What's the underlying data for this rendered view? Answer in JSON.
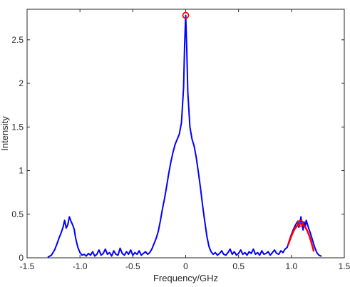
{
  "chart_data": {
    "type": "line",
    "title": "",
    "xlabel": "Frequency/GHz",
    "ylabel": "Intensity",
    "xlim": [
      -1.5,
      1.5
    ],
    "ylim": [
      0,
      2.85
    ],
    "xticks": [
      -1.5,
      -1,
      -0.5,
      0,
      0.5,
      1,
      1.5
    ],
    "xtick_labels": [
      "-1.5",
      "-1.0",
      "-0.5",
      "0",
      "0.5",
      "1.0",
      "1.5"
    ],
    "yticks": [
      0,
      0.5,
      1,
      1.5,
      2,
      2.5
    ],
    "ytick_labels": [
      "0",
      "0.5",
      "1",
      "1.5",
      "2",
      "2.5"
    ],
    "grid": false,
    "box": true,
    "series": [
      {
        "color": "#0000ff",
        "style": "solid",
        "x": [
          -1.3,
          -1.27,
          -1.24,
          -1.22,
          -1.2,
          -1.18,
          -1.16,
          -1.145,
          -1.13,
          -1.115,
          -1.1,
          -1.085,
          -1.07,
          -1.055,
          -1.04,
          -1.02,
          -1.0,
          -0.98,
          -0.96,
          -0.94,
          -0.92,
          -0.9,
          -0.88,
          -0.86,
          -0.84,
          -0.82,
          -0.8,
          -0.78,
          -0.76,
          -0.74,
          -0.72,
          -0.7,
          -0.68,
          -0.66,
          -0.64,
          -0.62,
          -0.6,
          -0.58,
          -0.56,
          -0.54,
          -0.52,
          -0.5,
          -0.48,
          -0.46,
          -0.44,
          -0.42,
          -0.4,
          -0.38,
          -0.36,
          -0.34,
          -0.32,
          -0.3,
          -0.28,
          -0.26,
          -0.24,
          -0.22,
          -0.2,
          -0.18,
          -0.16,
          -0.14,
          -0.12,
          -0.1,
          -0.08,
          -0.06,
          -0.04,
          -0.02,
          -0.01,
          0.0,
          0.01,
          0.02,
          0.04,
          0.06,
          0.08,
          0.1,
          0.12,
          0.14,
          0.16,
          0.18,
          0.2,
          0.22,
          0.24,
          0.26,
          0.28,
          0.3,
          0.32,
          0.34,
          0.36,
          0.38,
          0.4,
          0.42,
          0.44,
          0.46,
          0.48,
          0.5,
          0.52,
          0.54,
          0.56,
          0.58,
          0.6,
          0.62,
          0.64,
          0.66,
          0.68,
          0.7,
          0.72,
          0.74,
          0.76,
          0.78,
          0.8,
          0.82,
          0.84,
          0.86,
          0.88,
          0.9,
          0.92,
          0.94,
          0.96,
          0.98,
          1.0,
          1.02,
          1.04,
          1.06,
          1.07,
          1.08,
          1.09,
          1.1,
          1.11,
          1.12,
          1.13,
          1.14,
          1.16,
          1.18,
          1.2,
          1.22,
          1.24,
          1.26,
          1.28
        ],
        "y": [
          0.01,
          0.03,
          0.09,
          0.15,
          0.22,
          0.28,
          0.35,
          0.43,
          0.34,
          0.38,
          0.47,
          0.42,
          0.38,
          0.33,
          0.22,
          0.12,
          0.06,
          0.03,
          0.04,
          0.02,
          0.05,
          0.03,
          0.07,
          0.02,
          0.04,
          0.09,
          0.03,
          0.05,
          0.1,
          0.04,
          0.06,
          0.02,
          0.08,
          0.04,
          0.03,
          0.11,
          0.05,
          0.03,
          0.07,
          0.04,
          0.09,
          0.03,
          0.06,
          0.04,
          0.08,
          0.03,
          0.05,
          0.07,
          0.04,
          0.06,
          0.1,
          0.16,
          0.22,
          0.3,
          0.42,
          0.56,
          0.68,
          0.82,
          0.97,
          1.1,
          1.21,
          1.3,
          1.36,
          1.42,
          1.55,
          1.95,
          2.45,
          2.78,
          2.4,
          1.9,
          1.5,
          1.36,
          1.28,
          1.15,
          0.98,
          0.8,
          0.6,
          0.42,
          0.25,
          0.13,
          0.07,
          0.04,
          0.06,
          0.03,
          0.05,
          0.08,
          0.04,
          0.03,
          0.06,
          0.1,
          0.04,
          0.07,
          0.03,
          0.05,
          0.09,
          0.04,
          0.06,
          0.03,
          0.07,
          0.05,
          0.1,
          0.04,
          0.06,
          0.03,
          0.08,
          0.04,
          0.05,
          0.07,
          0.03,
          0.06,
          0.09,
          0.05,
          0.04,
          0.08,
          0.06,
          0.1,
          0.12,
          0.2,
          0.27,
          0.33,
          0.38,
          0.42,
          0.35,
          0.4,
          0.47,
          0.38,
          0.32,
          0.41,
          0.36,
          0.43,
          0.35,
          0.28,
          0.2,
          0.12,
          0.06,
          0.03,
          0.02
        ]
      },
      {
        "color": "#ff0000",
        "style": "solid",
        "x": [
          0.97,
          0.99,
          1.01,
          1.03,
          1.05,
          1.07,
          1.09,
          1.11,
          1.13,
          1.15,
          1.17,
          1.19,
          1.21
        ],
        "y": [
          0.15,
          0.22,
          0.28,
          0.33,
          0.36,
          0.385,
          0.39,
          0.38,
          0.355,
          0.31,
          0.25,
          0.17,
          0.08
        ]
      }
    ],
    "markers": [
      {
        "x": 0.0,
        "y": 2.78,
        "color": "#ff0000",
        "shape": "circle"
      },
      {
        "x": 1.085,
        "y": 0.395,
        "color": "#ff0000",
        "shape": "circle"
      }
    ]
  }
}
